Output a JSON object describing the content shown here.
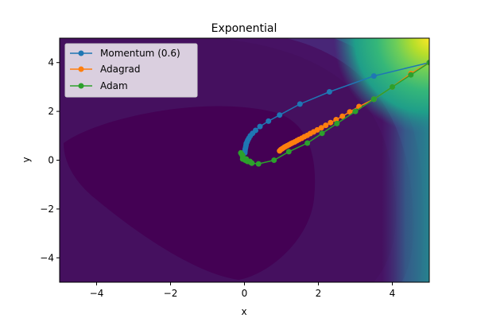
{
  "chart_data": {
    "type": "line",
    "title": "Exponential",
    "xlabel": "x",
    "ylabel": "y",
    "xlim": [
      -5,
      5
    ],
    "ylim": [
      -5,
      5
    ],
    "xticks": [
      -4,
      -2,
      0,
      2,
      4
    ],
    "yticks": [
      -4,
      -2,
      0,
      2,
      4
    ],
    "xtick_labels": [
      "−4",
      "−2",
      "0",
      "2",
      "4"
    ],
    "ytick_labels": [
      "−4",
      "−2",
      "0",
      "2",
      "4"
    ],
    "grid": false,
    "legend_position": "top-left",
    "background": "filled contour (viridis colormap)",
    "series": [
      {
        "name": "Momentum (0.6)",
        "color": "#1f77b4",
        "x": [
          5.0,
          3.5,
          2.3,
          1.5,
          0.95,
          0.65,
          0.42,
          0.3,
          0.22,
          0.16,
          0.12,
          0.09,
          0.07,
          0.05,
          0.04,
          0.03,
          0.02,
          0.015,
          0.01
        ],
        "y": [
          4.0,
          3.45,
          2.8,
          2.3,
          1.85,
          1.6,
          1.38,
          1.22,
          1.1,
          1.0,
          0.9,
          0.82,
          0.75,
          0.68,
          0.6,
          0.52,
          0.45,
          0.38,
          0.3
        ]
      },
      {
        "name": "Adagrad",
        "color": "#ff7f0e",
        "x": [
          5.0,
          4.5,
          4.0,
          3.5,
          3.1,
          2.85,
          2.65,
          2.48,
          2.33,
          2.2,
          2.08,
          1.97,
          1.87,
          1.78,
          1.7,
          1.62,
          1.55,
          1.48,
          1.42,
          1.36,
          1.3,
          1.25,
          1.2,
          1.15,
          1.1,
          1.06,
          1.02,
          0.98,
          0.95
        ],
        "y": [
          4.0,
          3.55,
          3.0,
          2.5,
          2.2,
          1.98,
          1.8,
          1.66,
          1.54,
          1.43,
          1.33,
          1.24,
          1.16,
          1.09,
          1.02,
          0.96,
          0.9,
          0.85,
          0.8,
          0.75,
          0.71,
          0.67,
          0.63,
          0.59,
          0.55,
          0.51,
          0.47,
          0.43,
          0.38
        ]
      },
      {
        "name": "Adam",
        "color": "#2ca02c",
        "x": [
          5.0,
          4.5,
          4.0,
          3.5,
          3.0,
          2.5,
          2.1,
          1.7,
          1.2,
          0.8,
          0.38,
          0.2,
          0.08,
          0.0,
          -0.05,
          -0.08,
          -0.1,
          -0.05,
          0.05,
          0.15,
          0.2,
          0.18,
          0.1,
          0.02,
          -0.05
        ],
        "y": [
          4.0,
          3.5,
          3.0,
          2.5,
          2.0,
          1.5,
          1.1,
          0.7,
          0.35,
          0.0,
          -0.15,
          -0.12,
          -0.05,
          0.05,
          0.15,
          0.25,
          0.3,
          0.2,
          0.05,
          -0.05,
          -0.12,
          -0.1,
          -0.05,
          0.0,
          0.05
        ]
      }
    ]
  }
}
